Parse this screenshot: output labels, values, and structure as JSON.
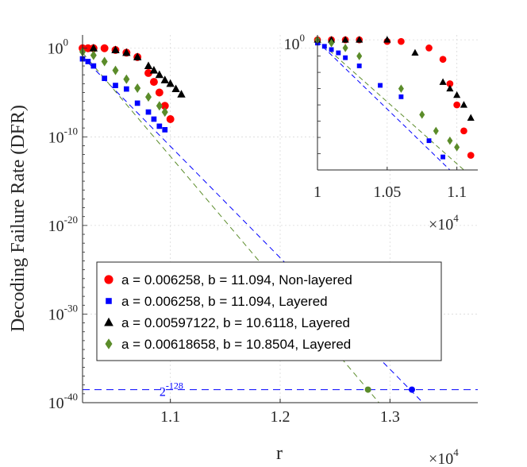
{
  "chart_data": [
    {
      "type": "scatter",
      "xlabel": "r",
      "ylabel": "Decoding Failure Rate (DFR)",
      "x_multiplier_label": "×10",
      "x_multiplier_exp": "4",
      "xlim": [
        10200,
        13800
      ],
      "ylim_log10": [
        -40,
        1.5
      ],
      "y_scale": "log",
      "x_ticks": [
        {
          "v": 11000,
          "label": "1.1"
        },
        {
          "v": 12000,
          "label": "1.2"
        },
        {
          "v": 13000,
          "label": "1.3"
        }
      ],
      "y_ticks": [
        {
          "e": 0,
          "base": "10",
          "exp": "0"
        },
        {
          "e": -10,
          "base": "10",
          "exp": "-10"
        },
        {
          "e": -20,
          "base": "10",
          "exp": "-20"
        },
        {
          "e": -30,
          "base": "10",
          "exp": "-30"
        },
        {
          "e": -40,
          "base": "10",
          "exp": "-40"
        }
      ],
      "grid": true,
      "legend_position": "lower-left",
      "series": [
        {
          "name": "a = 0.006258, b = 11.094, Non-layered",
          "marker": "circle",
          "color": "#ff0000",
          "points": [
            [
              10200,
              0.0
            ],
            [
              10250,
              0.0
            ],
            [
              10300,
              0.0
            ],
            [
              10400,
              0.0
            ],
            [
              10500,
              -0.2
            ],
            [
              10600,
              -0.5
            ],
            [
              10700,
              -1.0
            ],
            [
              10800,
              -2.8
            ],
            [
              10850,
              -3.8
            ],
            [
              10900,
              -5.0
            ],
            [
              10950,
              -6.5
            ],
            [
              11000,
              -8.0
            ]
          ],
          "fit": null
        },
        {
          "name": "a = 0.006258, b = 11.094, Layered",
          "marker": "square",
          "color": "#0000ff",
          "points": [
            [
              10200,
              -1.2
            ],
            [
              10250,
              -1.5
            ],
            [
              10300,
              -2.0
            ],
            [
              10400,
              -3.4
            ],
            [
              10500,
              -4.2
            ],
            [
              10600,
              -4.6
            ],
            [
              10700,
              -6.2
            ],
            [
              10800,
              -7.2
            ],
            [
              10850,
              -8.0
            ],
            [
              10900,
              -8.8
            ],
            [
              10950,
              -9.2
            ]
          ],
          "fit": [
            [
              10200,
              -1.0
            ],
            [
              13300,
              -40.0
            ]
          ],
          "security_point": [
            13200,
            -38.53
          ]
        },
        {
          "name": "a = 0.00597122, b = 10.6118, Layered",
          "marker": "triangle",
          "color": "#000000",
          "points": [
            [
              10300,
              0.0
            ],
            [
              10500,
              -0.2
            ],
            [
              10600,
              -0.5
            ],
            [
              10700,
              -1.0
            ],
            [
              10800,
              -2.0
            ],
            [
              10850,
              -2.5
            ],
            [
              10900,
              -3.0
            ],
            [
              10950,
              -3.6
            ],
            [
              11000,
              -4.0
            ],
            [
              11050,
              -4.6
            ],
            [
              11100,
              -5.2
            ]
          ],
          "fit": null
        },
        {
          "name": "a = 0.00618658, b = 10.8504, Layered",
          "marker": "diamond",
          "color": "#5b8c2a",
          "points": [
            [
              10200,
              -0.4
            ],
            [
              10300,
              -0.8
            ],
            [
              10400,
              -1.5
            ],
            [
              10500,
              -2.5
            ],
            [
              10600,
              -3.5
            ],
            [
              10700,
              -4.5
            ],
            [
              10800,
              -5.5
            ],
            [
              10900,
              -6.5
            ],
            [
              10950,
              -7.2
            ]
          ],
          "fit": [
            [
              10200,
              -0.5
            ],
            [
              12900,
              -40.0
            ]
          ],
          "security_point": [
            12800,
            -38.53
          ]
        }
      ],
      "security_line": {
        "log10_value": -38.53,
        "label_base": "2",
        "label_exp": "-128",
        "color": "#0000ff"
      }
    },
    {
      "type": "scatter",
      "panel": "inset",
      "xlim": [
        10000,
        11150
      ],
      "ylim_log10": [
        -8,
        0.3
      ],
      "y_scale": "log",
      "x_ticks": [
        {
          "v": 10000,
          "label": "1"
        },
        {
          "v": 10500,
          "label": "1.05"
        },
        {
          "v": 11000,
          "label": "1.1"
        }
      ],
      "y_ticks": [
        {
          "e": 0,
          "base": "10",
          "exp": "0"
        }
      ],
      "x_multiplier_label": "×10",
      "x_multiplier_exp": "4",
      "grid": true,
      "series": [
        {
          "marker": "circle",
          "color": "#ff0000",
          "points": [
            [
              10000,
              0.0
            ],
            [
              10100,
              0.0
            ],
            [
              10200,
              0.0
            ],
            [
              10300,
              0.0
            ],
            [
              10500,
              -0.1
            ],
            [
              10600,
              -0.1
            ],
            [
              10800,
              -0.5
            ],
            [
              10900,
              -1.2
            ],
            [
              10950,
              -2.7
            ],
            [
              11000,
              -4.0
            ],
            [
              11050,
              -5.6
            ],
            [
              11100,
              -7.1
            ]
          ]
        },
        {
          "marker": "square",
          "color": "#0000ff",
          "points": [
            [
              10000,
              -0.2
            ],
            [
              10050,
              -0.4
            ],
            [
              10100,
              -0.6
            ],
            [
              10150,
              -0.8
            ],
            [
              10200,
              -1.1
            ],
            [
              10300,
              -1.6
            ],
            [
              10450,
              -2.8
            ],
            [
              10600,
              -3.5
            ],
            [
              10800,
              -6.2
            ],
            [
              10900,
              -7.2
            ]
          ],
          "fit": [
            [
              10000,
              -0.1
            ],
            [
              10950,
              -8.0
            ]
          ]
        },
        {
          "marker": "triangle",
          "color": "#000000",
          "points": [
            [
              10000,
              0.0
            ],
            [
              10100,
              0.0
            ],
            [
              10200,
              0.0
            ],
            [
              10300,
              0.0
            ],
            [
              10500,
              0.0
            ],
            [
              10700,
              -0.8
            ],
            [
              10900,
              -2.6
            ],
            [
              10950,
              -3.0
            ],
            [
              11000,
              -3.4
            ],
            [
              11050,
              -4.0
            ],
            [
              11100,
              -4.8
            ]
          ]
        },
        {
          "marker": "diamond",
          "color": "#5b8c2a",
          "points": [
            [
              10000,
              0.0
            ],
            [
              10100,
              -0.2
            ],
            [
              10200,
              -0.5
            ],
            [
              10300,
              -1.0
            ],
            [
              10600,
              -3.0
            ],
            [
              10750,
              -4.6
            ],
            [
              10850,
              -5.6
            ],
            [
              10950,
              -6.2
            ],
            [
              11000,
              -6.6
            ]
          ],
          "fit": [
            [
              10000,
              0.0
            ],
            [
              11050,
              -8.0
            ]
          ]
        }
      ]
    }
  ]
}
